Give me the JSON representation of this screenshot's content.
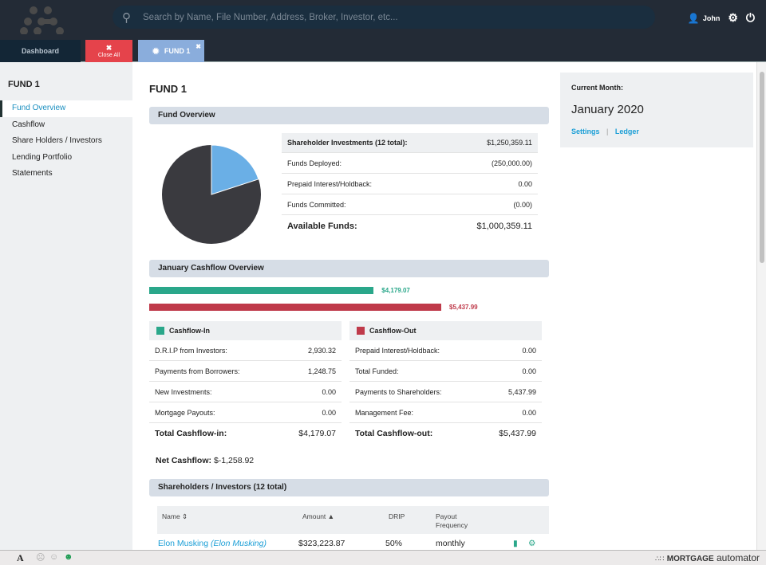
{
  "header": {
    "search_placeholder": "Search by Name, File Number, Address, Broker, Investor, etc...",
    "user": "John"
  },
  "tabs": {
    "dashboard": "Dashboard",
    "close_all": "Close All",
    "fund": "FUND 1"
  },
  "sidebar": {
    "title": "FUND 1",
    "items": [
      {
        "label": "Fund Overview"
      },
      {
        "label": "Cashflow"
      },
      {
        "label": "Share Holders / Investors"
      },
      {
        "label": "Lending Portfolio"
      },
      {
        "label": "Statements"
      }
    ]
  },
  "page_title": "FUND 1",
  "fund_overview": {
    "title": "Fund Overview",
    "rows": [
      {
        "label": "Shareholder Investments (12 total):",
        "value": "$1,250,359.11"
      },
      {
        "label": "Funds Deployed:",
        "value": "(250,000.00)"
      },
      {
        "label": "Prepaid Interest/Holdback:",
        "value": "0.00"
      },
      {
        "label": "Funds Committed:",
        "value": "(0.00)"
      }
    ],
    "available_label": "Available Funds:",
    "available_value": "$1,000,359.11",
    "pie": {
      "deployed_fraction": 0.2,
      "available_fraction": 0.8,
      "colors": {
        "deployed": "#6aafe6",
        "available": "#3a3a3f"
      }
    }
  },
  "cashflow": {
    "title": "January Cashflow Overview",
    "in_value": "$4,179.07",
    "out_value": "$5,437.99",
    "in_fraction": 0.7685,
    "out_fraction": 1,
    "in": {
      "title": "Cashflow-In",
      "rows": [
        {
          "label": "D.R.I.P from Investors:",
          "value": "2,930.32"
        },
        {
          "label": "Payments from Borrowers:",
          "value": "1,248.75"
        },
        {
          "label": "New Investments:",
          "value": "0.00"
        },
        {
          "label": "Mortgage Payouts:",
          "value": "0.00"
        }
      ],
      "total_label": "Total Cashflow-in:",
      "total": "$4,179.07"
    },
    "out": {
      "title": "Cashflow-Out",
      "rows": [
        {
          "label": "Prepaid Interest/Holdback:",
          "value": "0.00"
        },
        {
          "label": "Total Funded:",
          "value": "0.00"
        },
        {
          "label": "Payments to Shareholders:",
          "value": "5,437.99"
        },
        {
          "label": "Management Fee:",
          "value": "0.00"
        }
      ],
      "total_label": "Total Cashflow-out:",
      "total": "$5,437.99"
    },
    "net_label": "Net Cashflow:",
    "net_value": "$-1,258.92",
    "colors": {
      "in": "#2aa78a",
      "out": "#bf3a4a"
    }
  },
  "shareholders": {
    "title": "Shareholders / Investors (12 total)",
    "headers": {
      "name": "Name",
      "amount": "Amount",
      "drip": "DRIP",
      "payout": "Payout Frequency"
    },
    "rows": [
      {
        "name": "Elon Musking",
        "alias": "(Elon Musking)",
        "amount": "$323,223.87",
        "drip": "50%",
        "payout": "monthly"
      }
    ]
  },
  "right_panel": {
    "label": "Current Month:",
    "month": "January 2020",
    "settings": "Settings",
    "sep": "|",
    "ledger": "Ledger"
  },
  "footer": {
    "font_icon": "A",
    "brand_bold": "MORTGAGE",
    "brand_light": "automator"
  }
}
